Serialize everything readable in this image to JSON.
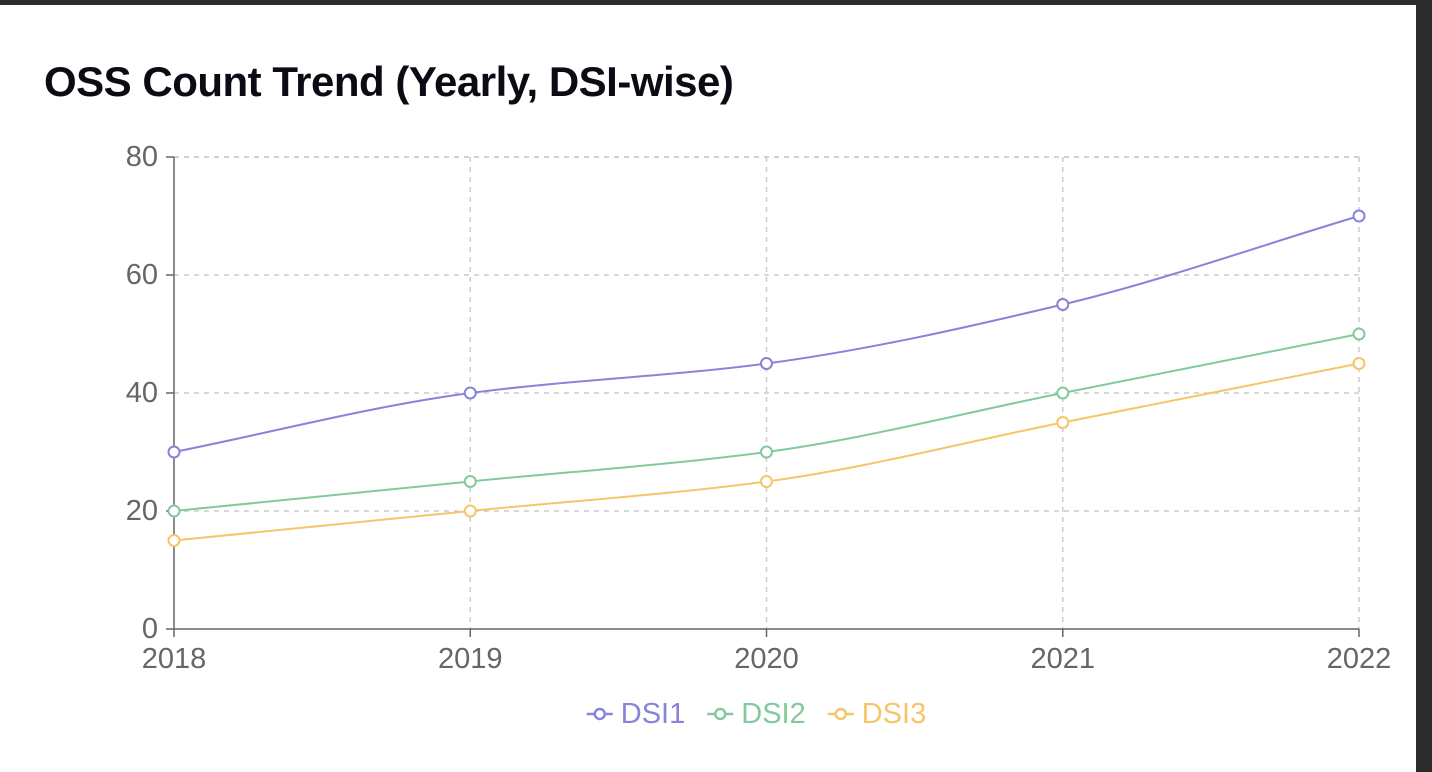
{
  "header": {
    "title": "OSS Count Trend (Yearly, DSI-wise)"
  },
  "chart_data": {
    "type": "line",
    "title": "OSS Count Trend (Yearly, DSI-wise)",
    "xlabel": "",
    "ylabel": "",
    "x": [
      "2018",
      "2019",
      "2020",
      "2021",
      "2022"
    ],
    "yticks": [
      "0",
      "20",
      "40",
      "60",
      "80"
    ],
    "ylim": [
      0,
      80
    ],
    "grid": true,
    "grid_style": "dashed",
    "legend_position": "bottom-center",
    "curve": "smooth",
    "series": [
      {
        "name": "DSI1",
        "color": "#8884d8",
        "values": [
          30,
          40,
          45,
          55,
          70
        ]
      },
      {
        "name": "DSI2",
        "color": "#82ca9d",
        "values": [
          20,
          25,
          30,
          40,
          50
        ]
      },
      {
        "name": "DSI3",
        "color": "#f5c669",
        "values": [
          15,
          20,
          25,
          35,
          45
        ]
      }
    ]
  }
}
